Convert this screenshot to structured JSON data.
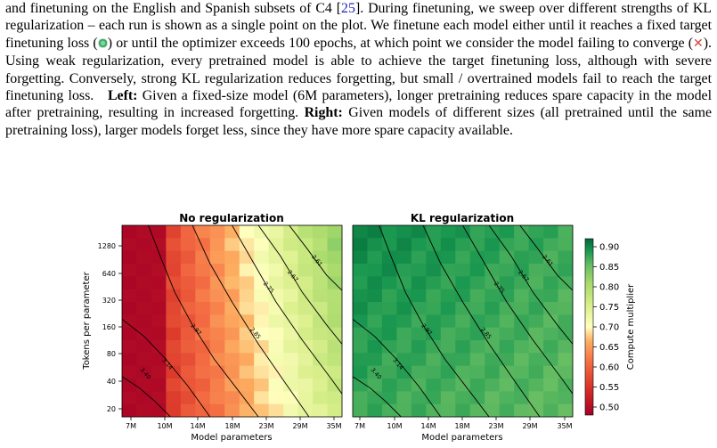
{
  "caption": {
    "seg1": "and finetuning on the English and Spanish subsets of C4 [",
    "cite": "25",
    "seg2": "]. During finetuning, we sweep over different strengths of KL regularization – each run is shown as a single point on the plot. We finetune each model either until it reaches a fixed target finetuning loss (",
    "seg3": ") or until the optimizer exceeds 100 epochs, at which point we consider the model failing to converge (",
    "seg4": "). Using weak regularization, every pretrained model is able to achieve the target finetuning loss, although with severe forgetting. Conversely, strong KL regularization reduces forgetting, but small / overtrained models fail to reach the target finetuning loss.",
    "left_label": "Left:",
    "left_text": " Given a fixed-size model (6M parameters), longer pretraining reduces spare capacity in the model after pretraining, resulting in increased forgetting.",
    "right_label": "Right:",
    "right_text": " Given models of different sizes (all pretrained until the same pretraining loss), larger models forget less, since they have more spare capacity available.",
    "x_mark": "✕"
  },
  "chart_data": [
    {
      "type": "heatmap",
      "title": "No regularization",
      "xlabel": "Model parameters",
      "ylabel": "Tokens per parameter",
      "x_ticks": [
        "7M",
        "10M",
        "14M",
        "18M",
        "23M",
        "29M",
        "35M"
      ],
      "y_ticks": [
        "20",
        "40",
        "80",
        "160",
        "320",
        "640",
        "1280"
      ],
      "contour_levels": [
        "3.40",
        "3.14",
        "2.97",
        "2.85",
        "2.75",
        "2.67",
        "2.61"
      ]
    },
    {
      "type": "heatmap",
      "title": "KL regularization",
      "xlabel": "Model parameters",
      "ylabel": "",
      "x_ticks": [
        "7M",
        "10M",
        "14M",
        "18M",
        "23M",
        "29M",
        "35M"
      ],
      "y_ticks": [],
      "contour_levels": [
        "3.40",
        "3.14",
        "2.97",
        "2.85",
        "2.75",
        "2.67",
        "2.61"
      ]
    }
  ],
  "colorbar": {
    "label": "Compute multiplier",
    "ticks": [
      "0.90",
      "0.85",
      "0.80",
      "0.75",
      "0.70",
      "0.65",
      "0.60",
      "0.55",
      "0.50"
    ],
    "range": [
      0.48,
      0.92
    ],
    "colors": {
      "low": "#a50026",
      "mid": "#ffffbf",
      "high": "#006837"
    }
  }
}
